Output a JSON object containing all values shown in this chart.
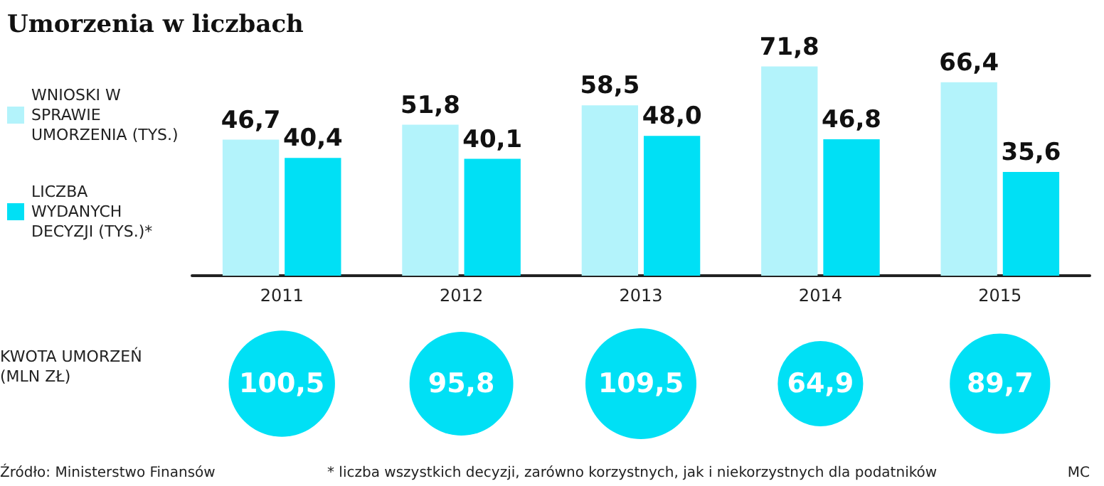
{
  "chart_data": [
    {
      "type": "bar",
      "title": "Umorzenia w liczbach",
      "categories": [
        "2011",
        "2012",
        "2013",
        "2014",
        "2015"
      ],
      "legend": "left",
      "series": [
        {
          "name": "WNIOSKI W SPRAWIE UMORZENIA (TYS.)",
          "color": "#b3f3fb",
          "values": [
            46.7,
            51.8,
            58.5,
            71.8,
            66.4
          ],
          "value_labels": [
            "46,7",
            "51,8",
            "58,5",
            "71,8",
            "66,4"
          ]
        },
        {
          "name": "LICZBA WYDANYCH DECYZJI (TYS.)*",
          "color": "#00e0f5",
          "values": [
            40.4,
            40.1,
            48.0,
            46.8,
            35.6
          ],
          "value_labels": [
            "40,4",
            "40,1",
            "48,0",
            "46,8",
            "35,6"
          ]
        }
      ],
      "tick_labels": "x"
    },
    {
      "type": "other",
      "categories": [
        null,
        null,
        null,
        null,
        null
      ],
      "ylabel": "KWOTA UMORZEŃ (MLN ZŁ)",
      "values": [
        100.5,
        95.8,
        109.5,
        64.9,
        89.7
      ],
      "value_labels": [
        "100,5",
        "95,8",
        "109,5",
        "64,9",
        "89,7"
      ],
      "color": "#00e0f5",
      "annotations": [
        "Źródło: Ministerstwo Finansów",
        "* liczba wszystkich decyzji, zarówno korzystnych, jak i niekorzystnych dla podatników",
        "MC"
      ]
    }
  ]
}
